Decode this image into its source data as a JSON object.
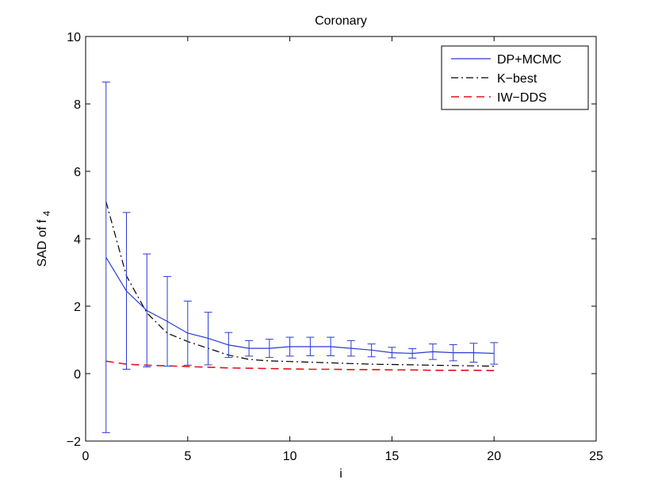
{
  "chart_data": {
    "type": "line",
    "title": "Coronary",
    "xlabel": "i",
    "ylabel_main": "SAD of f",
    "ylabel_sub": "4",
    "xlim": [
      0,
      25
    ],
    "ylim": [
      -2,
      10
    ],
    "xticks": [
      0,
      5,
      10,
      15,
      20,
      25
    ],
    "yticks": [
      -2,
      0,
      2,
      4,
      6,
      8,
      10
    ],
    "grid": false,
    "legend_position": "top-right",
    "x": [
      1,
      2,
      3,
      4,
      5,
      6,
      7,
      8,
      9,
      10,
      11,
      12,
      13,
      14,
      15,
      16,
      17,
      18,
      19,
      20
    ],
    "series": [
      {
        "name": "DP+MCMC",
        "color": "#2b3bd6",
        "style": "solid",
        "values": [
          3.45,
          2.45,
          1.87,
          1.55,
          1.2,
          1.05,
          0.85,
          0.75,
          0.75,
          0.8,
          0.8,
          0.8,
          0.75,
          0.7,
          0.62,
          0.6,
          0.65,
          0.62,
          0.62,
          0.6
        ],
        "err_upper": [
          8.65,
          4.78,
          3.55,
          2.88,
          2.15,
          1.82,
          1.22,
          0.98,
          1.02,
          1.08,
          1.08,
          1.08,
          0.98,
          0.88,
          0.78,
          0.74,
          0.88,
          0.86,
          0.9,
          0.92
        ],
        "err_lower": [
          -1.75,
          0.13,
          0.2,
          0.22,
          0.25,
          0.26,
          0.48,
          0.52,
          0.48,
          0.52,
          0.53,
          0.53,
          0.52,
          0.5,
          0.47,
          0.46,
          0.42,
          0.38,
          0.34,
          0.28
        ]
      },
      {
        "name": "K−best",
        "color": "#000000",
        "style": "dashdot",
        "values": [
          5.1,
          2.9,
          1.8,
          1.2,
          0.95,
          0.75,
          0.55,
          0.42,
          0.38,
          0.36,
          0.34,
          0.32,
          0.3,
          0.28,
          0.27,
          0.26,
          0.25,
          0.24,
          0.23,
          0.22
        ]
      },
      {
        "name": "IW−DDS",
        "color": "#e0141e",
        "style": "dashed",
        "values": [
          0.37,
          0.28,
          0.25,
          0.23,
          0.21,
          0.19,
          0.17,
          0.16,
          0.15,
          0.14,
          0.13,
          0.13,
          0.12,
          0.12,
          0.11,
          0.11,
          0.1,
          0.1,
          0.1,
          0.09
        ]
      }
    ]
  }
}
